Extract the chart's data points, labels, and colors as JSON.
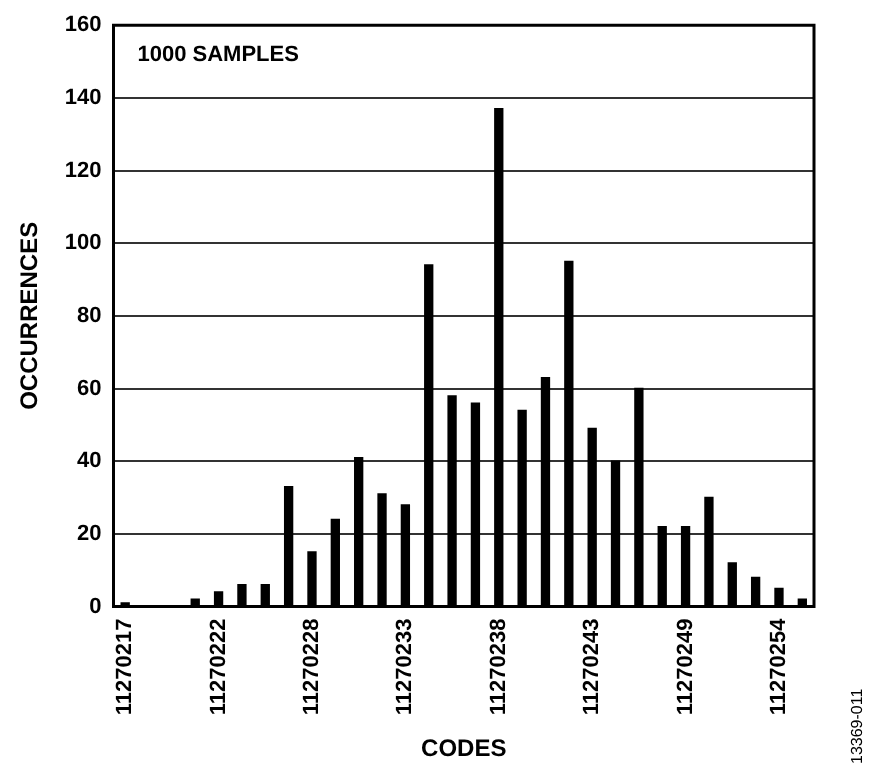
{
  "chart_data": {
    "type": "bar",
    "xlabel": "CODES",
    "ylabel": "OCCURRENCES",
    "categories": [
      "11270217",
      null,
      null,
      null,
      "11270222",
      null,
      null,
      null,
      "11270228",
      null,
      null,
      null,
      "11270233",
      null,
      null,
      null,
      "11270238",
      null,
      null,
      null,
      "11270243",
      null,
      null,
      null,
      "11270249",
      null,
      null,
      null,
      "11270254",
      null
    ],
    "values": [
      1,
      0,
      0,
      2,
      4,
      6,
      6,
      33,
      15,
      24,
      41,
      31,
      28,
      94,
      58,
      56,
      137,
      54,
      63,
      95,
      49,
      40,
      60,
      22,
      22,
      30,
      12,
      8,
      5,
      2
    ],
    "color": "#000000",
    "ylim": [
      0,
      160
    ],
    "yticks": [
      0,
      20,
      40,
      60,
      80,
      100,
      120,
      140,
      160
    ],
    "grid": "y",
    "legend": false,
    "annotations": [
      "1000 SAMPLES",
      "13369-011"
    ]
  }
}
